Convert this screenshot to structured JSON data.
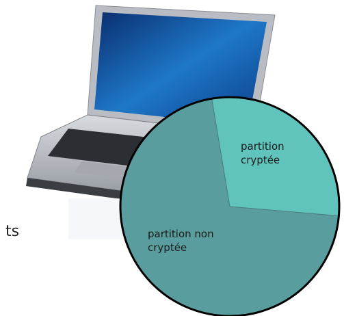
{
  "fragment_text": "ts",
  "chart_data": {
    "type": "pie",
    "categories": [
      "partition cryptée",
      "partition non cryptée"
    ],
    "values": [
      29,
      71
    ],
    "colors": [
      "#60c4bc",
      "#5a9d9f"
    ]
  }
}
